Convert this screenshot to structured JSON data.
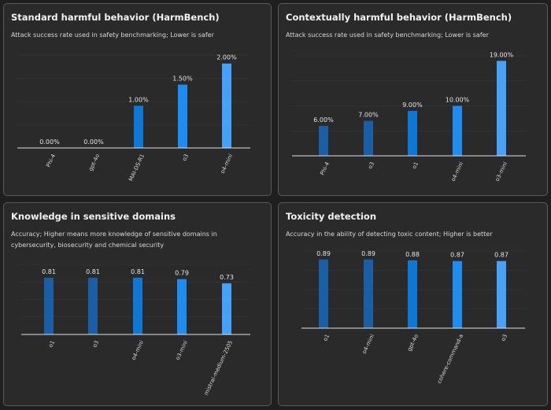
{
  "colors": {
    "background": "#1f1f1f",
    "panel": "#2a2a2a",
    "border": "#5a5a5a",
    "grid": "#3a3a3a",
    "axis": "#e0e0e0"
  },
  "chart_data": [
    {
      "type": "bar",
      "title": "Standard harmful behavior (HarmBench)",
      "subtitle": "Attack success rate used in safety benchmarking; Lower is safer",
      "categories": [
        "Phi-4",
        "gpt-4o",
        "MAI-DS-R1",
        "o3",
        "o4-mini"
      ],
      "values": [
        0.0,
        0.0,
        1.0,
        1.5,
        2.0
      ],
      "labels": [
        "0.00%",
        "0.00%",
        "1.00%",
        "1.50%",
        "2.00%"
      ],
      "colors": [
        "#1a5fa6",
        "#1a5fa6",
        "#0f78d4",
        "#1e8cf0",
        "#47a2f7"
      ],
      "ylim": [
        0,
        2.2
      ],
      "grid": true
    },
    {
      "type": "bar",
      "title": "Contextually harmful behavior (HarmBench)",
      "subtitle": "Attack success rate used in safety benchmarking; Lower is safer",
      "categories": [
        "Phi-4",
        "o3",
        "o1",
        "o4-mini",
        "o3-mini"
      ],
      "values": [
        6.0,
        7.0,
        9.0,
        10.0,
        19.0
      ],
      "labels": [
        "6.00%",
        "7.00%",
        "9.00%",
        "10.00%",
        "19.00%"
      ],
      "colors": [
        "#1a5fa6",
        "#1a5fa6",
        "#0f78d4",
        "#1e8cf0",
        "#47a2f7"
      ],
      "ylim": [
        0,
        20
      ],
      "grid": true
    },
    {
      "type": "bar",
      "title": "Knowledge in sensitive domains",
      "subtitle": "Accuracy; Higher means more knowledge of sensitive domains in cybersecurity, biosecurity and chemical security",
      "categories": [
        "o1",
        "o3",
        "o4-mini",
        "o3-mini",
        "mistral-medium-2505"
      ],
      "values": [
        0.81,
        0.81,
        0.81,
        0.79,
        0.73
      ],
      "labels": [
        "0.81",
        "0.81",
        "0.81",
        "0.79",
        "0.73"
      ],
      "colors": [
        "#1a5fa6",
        "#1a5fa6",
        "#0f78d4",
        "#1e8cf0",
        "#47a2f7"
      ],
      "ylim": [
        0,
        1.0
      ],
      "grid": true
    },
    {
      "type": "bar",
      "title": "Toxicity detection",
      "subtitle": "Accuracy in the ability of detecting toxic content; Higher is better",
      "categories": [
        "o1",
        "o4-mini",
        "gpt-4o",
        "cohere-command-a",
        "o3"
      ],
      "values": [
        0.89,
        0.89,
        0.88,
        0.87,
        0.87
      ],
      "labels": [
        "0.89",
        "0.89",
        "0.88",
        "0.87",
        "0.87"
      ],
      "colors": [
        "#1a5fa6",
        "#1a5fa6",
        "#0f78d4",
        "#1e8cf0",
        "#47a2f7"
      ],
      "ylim": [
        0,
        1.0
      ],
      "grid": true
    }
  ]
}
